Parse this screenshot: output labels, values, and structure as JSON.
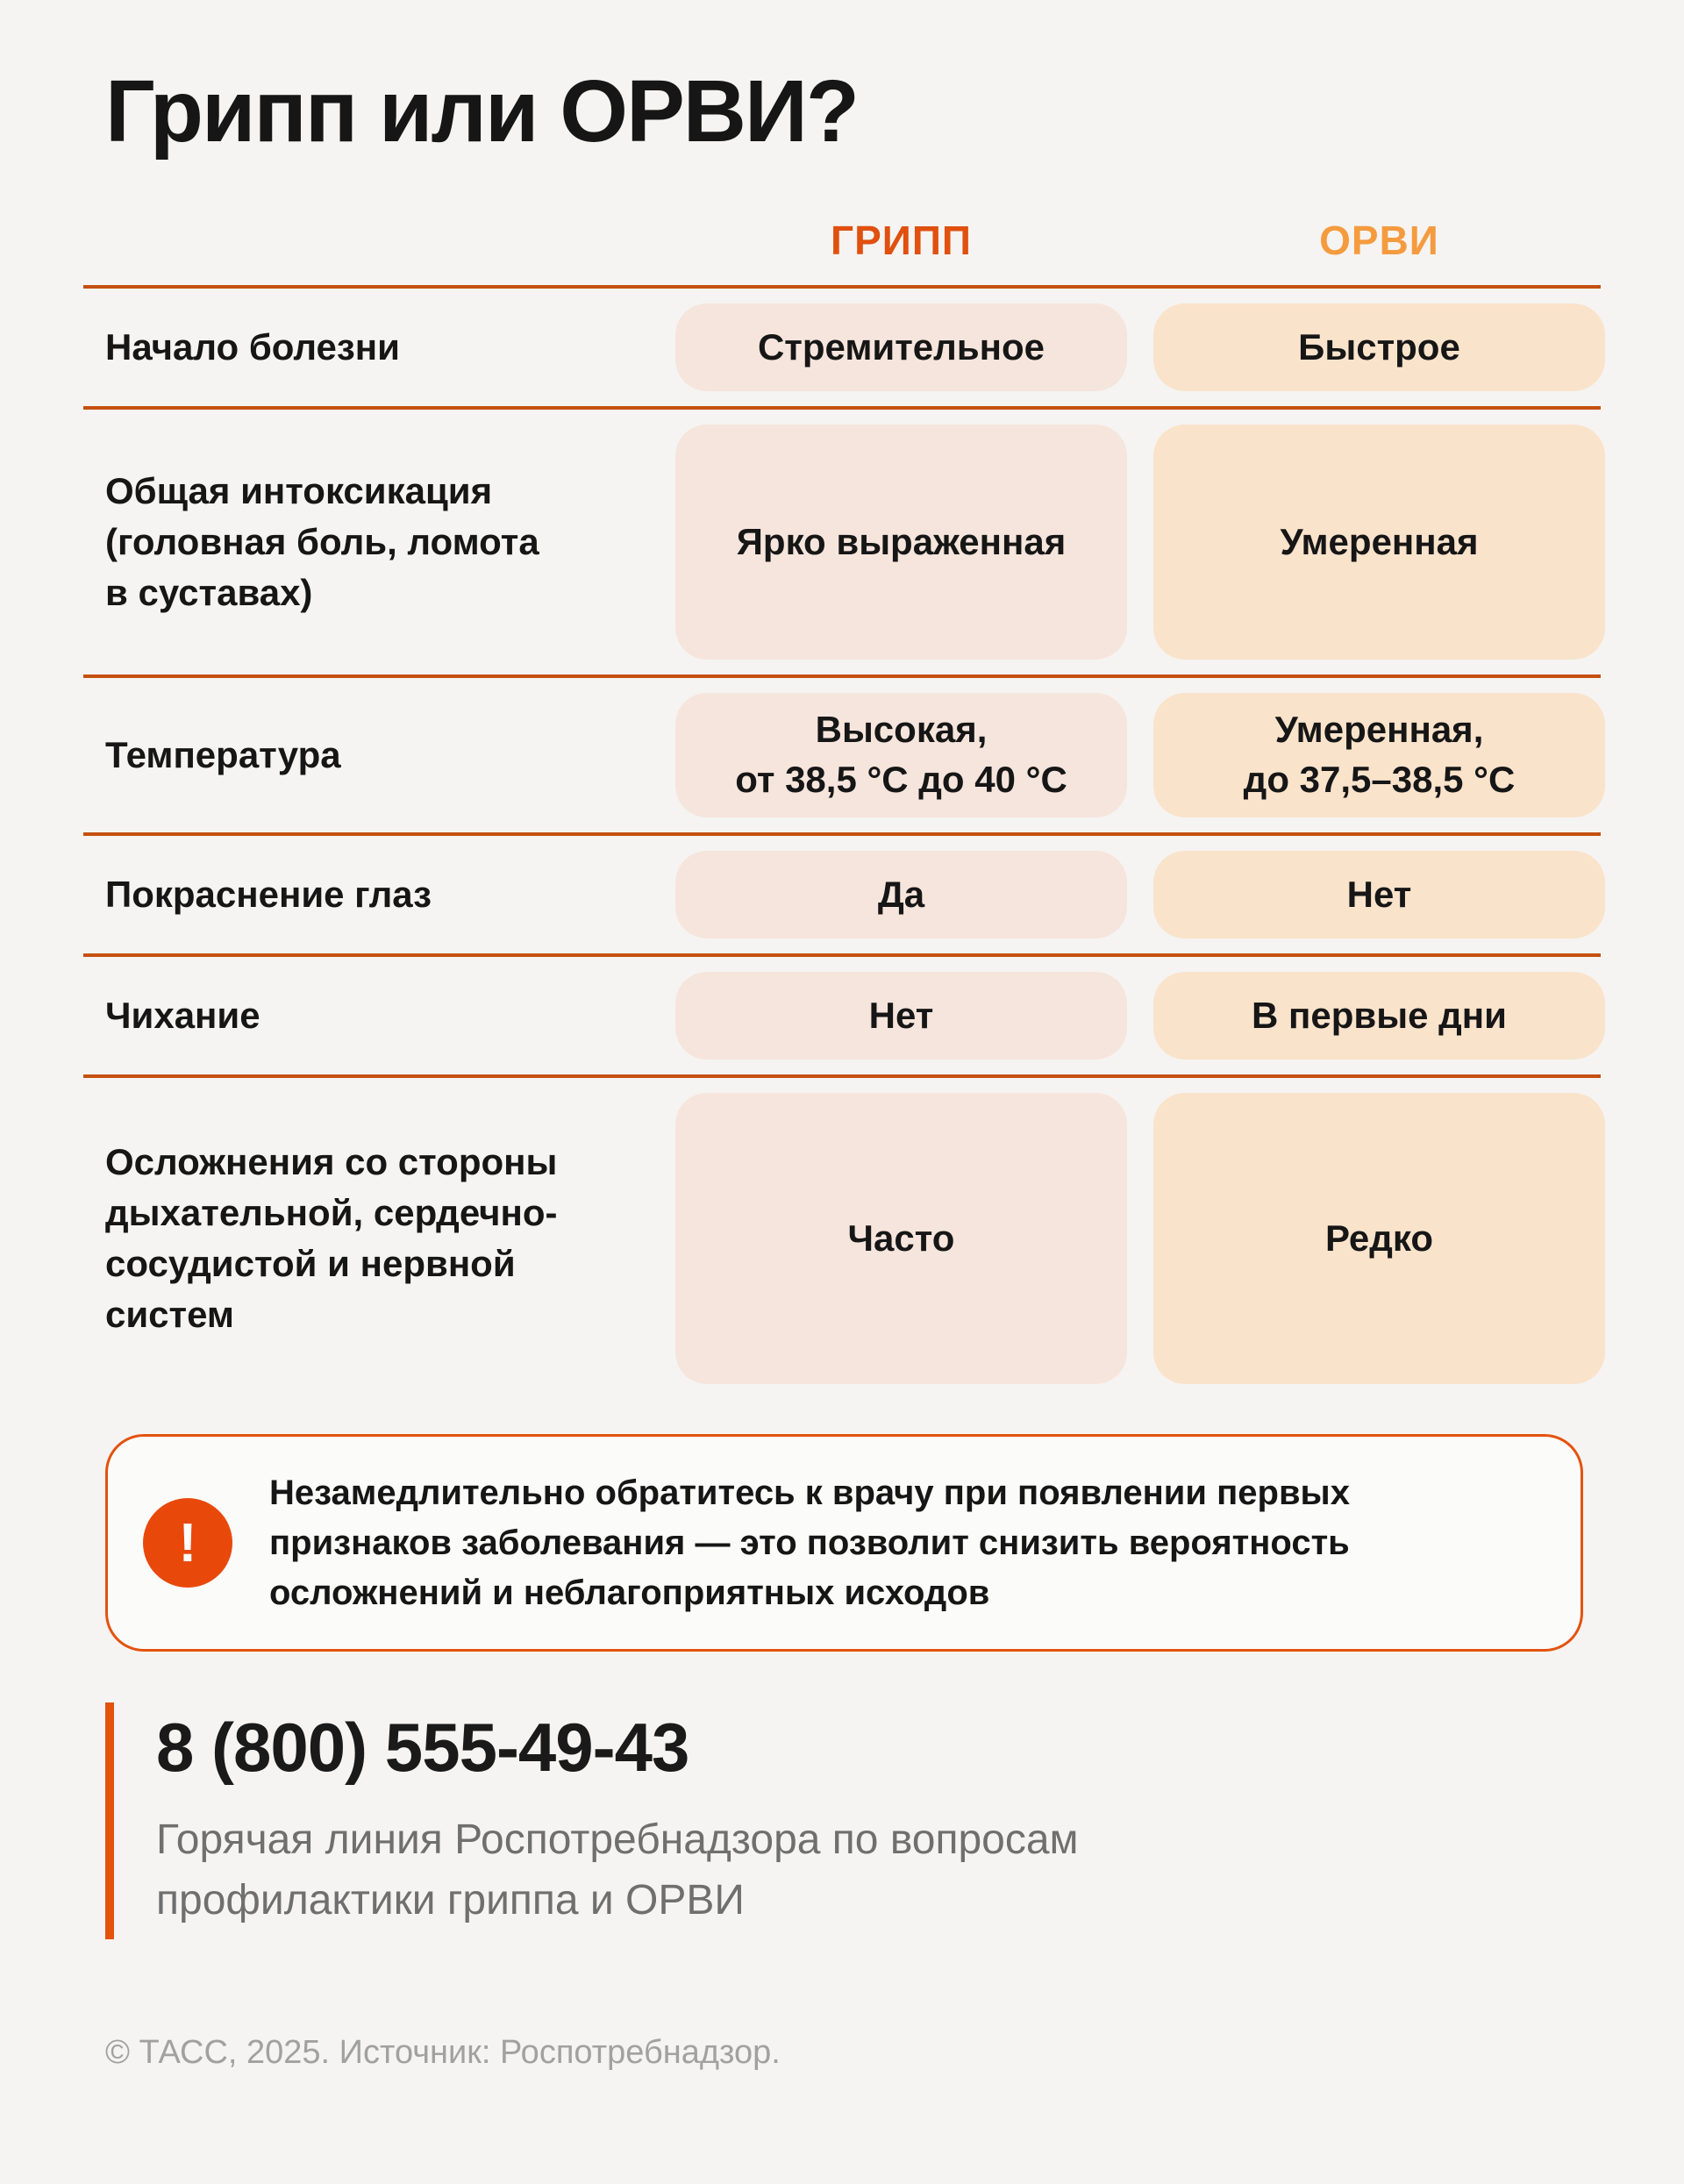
{
  "page": {
    "title": "Грипп или ОРВИ?"
  },
  "table": {
    "columns": [
      {
        "id": "gripp",
        "label": "ГРИПП"
      },
      {
        "id": "orvi",
        "label": "ОРВИ"
      }
    ],
    "rows": [
      {
        "label": [
          "Начало болезни"
        ],
        "gripp": [
          "Стремительное"
        ],
        "orvi": [
          "Быстрое"
        ]
      },
      {
        "label": [
          "Общая интоксикация",
          "(головная боль, ломота",
          "в суставах)"
        ],
        "gripp": [
          "Ярко выраженная"
        ],
        "orvi": [
          "Умеренная"
        ]
      },
      {
        "label": [
          "Температура"
        ],
        "gripp": [
          "Высокая,",
          "от 38,5 °C до 40 °C"
        ],
        "orvi": [
          "Умеренная,",
          "до 37,5–38,5 °C"
        ]
      },
      {
        "label": [
          "Покраснение глаз"
        ],
        "gripp": [
          "Да"
        ],
        "orvi": [
          "Нет"
        ]
      },
      {
        "label": [
          "Чихание"
        ],
        "gripp": [
          "Нет"
        ],
        "orvi": [
          "В первые дни"
        ]
      },
      {
        "label": [
          "Осложнения со стороны",
          "дыхательной, сердечно-",
          "сосудистой и нервной",
          "систем"
        ],
        "gripp": [
          "Часто"
        ],
        "orvi": [
          "Редко"
        ]
      }
    ]
  },
  "warning": {
    "icon": "exclamation-icon",
    "icon_glyph": "!",
    "text": "Незамедлительно обратитесь к врачу при появлении первых признаков заболевания — это позволит снизить вероятность осложнений и неблагоприятных исходов"
  },
  "hotline": {
    "phone": "8 (800) 555-49-43",
    "description": "Горячая линия Роспотребнадзора по вопросам профилактики гриппа и ОРВИ"
  },
  "footer": {
    "credit": "© ТАСС, 2025. Источник: Роспотребнадзор."
  },
  "colors": {
    "line": "#C5500F",
    "accent": "#E4520E",
    "gripp_accent": "#E0500F",
    "orvi_accent": "#F59B3F",
    "card_gripp_bg": "#F6E5DC",
    "card_orvi_bg": "#FAE3CB",
    "warning_icon_bg": "#E8490B",
    "text_dark": "#161616",
    "text_gray": "#6F6F6F",
    "footer_gray": "#A1A19E",
    "page_bg": "#F5F4F2"
  }
}
